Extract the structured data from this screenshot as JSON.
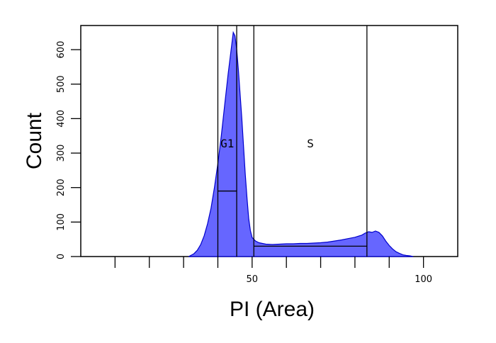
{
  "chart_data": {
    "type": "area",
    "title": "",
    "xlabel": "PI (Area)",
    "ylabel": "Count",
    "xlim": [
      0,
      110
    ],
    "ylim": [
      0,
      670
    ],
    "x_ticks": [
      {
        "value": 10,
        "label": ""
      },
      {
        "value": 20,
        "label": ""
      },
      {
        "value": 30,
        "label": ""
      },
      {
        "value": 40,
        "label": ""
      },
      {
        "value": 50,
        "label": "50"
      },
      {
        "value": 60,
        "label": ""
      },
      {
        "value": 70,
        "label": ""
      },
      {
        "value": 80,
        "label": ""
      },
      {
        "value": 90,
        "label": ""
      },
      {
        "value": 100,
        "label": "100"
      }
    ],
    "y_ticks": [
      {
        "value": 0,
        "label": "0"
      },
      {
        "value": 100,
        "label": "100"
      },
      {
        "value": 200,
        "label": "200"
      },
      {
        "value": 300,
        "label": "300"
      },
      {
        "value": 400,
        "label": "400"
      },
      {
        "value": 500,
        "label": "500"
      },
      {
        "value": 600,
        "label": "600"
      }
    ],
    "fill_color": "#6666ff",
    "line_color": "#0000cc",
    "series": [
      {
        "x": [
          31.5,
          33,
          34,
          35,
          36,
          37,
          38,
          39,
          40,
          41,
          42,
          43,
          44,
          44.5,
          45,
          45.5,
          46,
          46.5,
          47,
          47.5,
          48,
          48.5,
          49,
          49.5,
          50,
          51,
          52,
          53,
          54,
          56,
          58,
          60,
          62,
          64,
          66,
          68,
          70,
          72,
          74,
          76,
          78,
          80,
          82,
          83,
          84,
          85,
          86,
          87,
          88,
          89,
          90,
          91,
          92,
          93,
          94,
          95,
          96,
          97
        ],
        "y": [
          0,
          8,
          18,
          35,
          60,
          95,
          140,
          200,
          270,
          350,
          440,
          530,
          610,
          650,
          640,
          600,
          540,
          470,
          400,
          320,
          240,
          170,
          110,
          75,
          55,
          45,
          40,
          38,
          36,
          35,
          36,
          37,
          37,
          38,
          38,
          39,
          40,
          42,
          45,
          48,
          52,
          56,
          62,
          68,
          72,
          70,
          74,
          70,
          60,
          45,
          32,
          22,
          14,
          9,
          5,
          3,
          2,
          0
        ]
      }
    ],
    "gates": [
      {
        "label": "G1",
        "x_start": 40,
        "x_end": 45.5,
        "level": 190
      },
      {
        "label": "S",
        "x_start": 50.5,
        "x_end": 83.5,
        "level": 30
      }
    ]
  }
}
